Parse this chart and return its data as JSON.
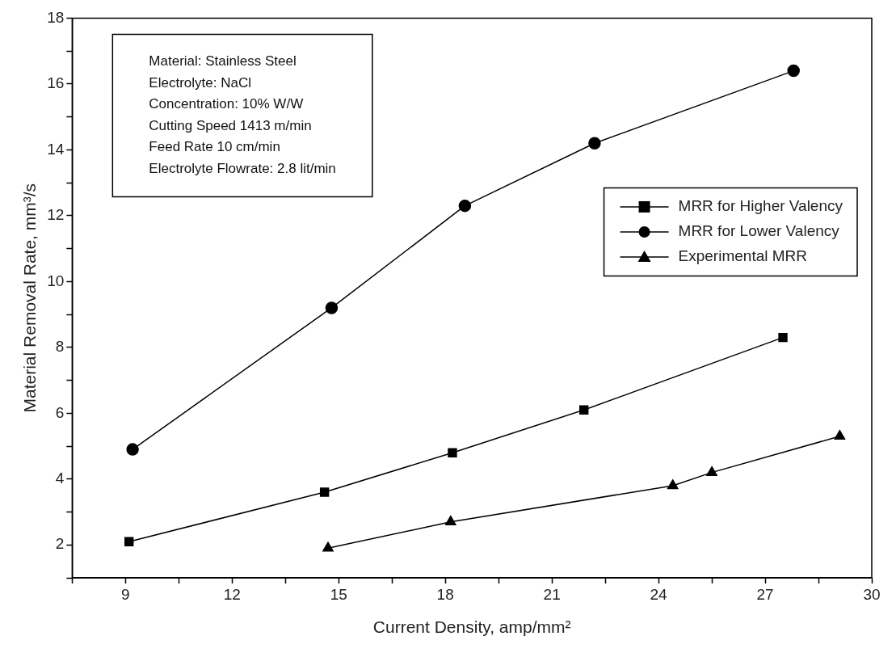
{
  "chart_data": {
    "type": "line",
    "xlabel": "Current Density, amp/mm²",
    "ylabel": "Material Removal Rate, mm³/s",
    "xlim": [
      7.5,
      30
    ],
    "ylim": [
      1,
      18
    ],
    "xticks": [
      {
        "value": 7.5,
        "label": null
      },
      9,
      {
        "value": 10.5,
        "label": null
      },
      12,
      {
        "value": 13.5,
        "label": null
      },
      15,
      {
        "value": 16.5,
        "label": null
      },
      18,
      {
        "value": 19.5,
        "label": null
      },
      21,
      {
        "value": 22.5,
        "label": null
      },
      24,
      {
        "value": 25.5,
        "label": null
      },
      27,
      {
        "value": 28.5,
        "label": null
      },
      30
    ],
    "yticks": [
      {
        "value": 1,
        "label": null
      },
      2,
      {
        "value": 3,
        "label": null
      },
      4,
      {
        "value": 5,
        "label": null
      },
      6,
      {
        "value": 7,
        "label": null
      },
      8,
      {
        "value": 9,
        "label": null
      },
      10,
      {
        "value": 11,
        "label": null
      },
      12,
      {
        "value": 13,
        "label": null
      },
      14,
      {
        "value": 15,
        "label": null
      },
      16,
      {
        "value": 17,
        "label": null
      },
      18
    ],
    "grid": false,
    "legend": "right",
    "line_style": "solid",
    "series": [
      {
        "name": "MRR for Higher Valency",
        "color": "#000000",
        "marker": "square",
        "x": [
          9.1,
          14.6,
          18.2,
          21.9,
          27.5
        ],
        "values": [
          2.1,
          3.6,
          4.8,
          6.1,
          8.3
        ]
      },
      {
        "name": "MRR for Lower Valency",
        "color": "#000000",
        "marker": "circle",
        "x": [
          9.2,
          14.8,
          18.55,
          22.2,
          27.8
        ],
        "values": [
          4.9,
          9.2,
          12.3,
          14.2,
          16.4
        ]
      },
      {
        "name": "Experimental MRR",
        "color": "#000000",
        "marker": "triangle",
        "x": [
          14.7,
          18.15,
          24.4,
          25.5,
          29.1
        ],
        "values": [
          1.9,
          2.7,
          3.8,
          4.2,
          5.3
        ]
      }
    ],
    "annotations": [
      "Material: Stainless Steel",
      "Electrolyte: NaCl",
      "Concentration: 10% W/W",
      "Cutting Speed 1413 m/min",
      "Feed Rate 10 cm/min",
      "Electrolyte Flowrate: 2.8 lit/min"
    ]
  }
}
